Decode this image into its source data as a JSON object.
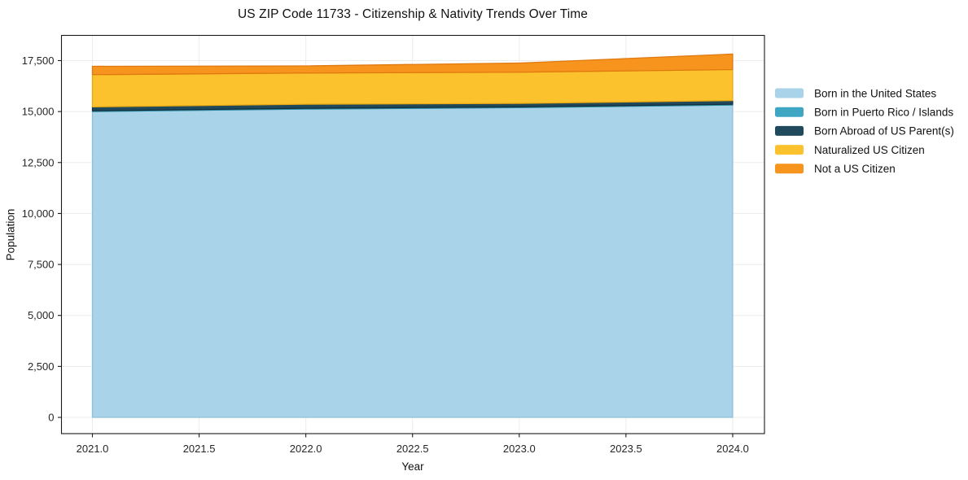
{
  "chart_data": {
    "type": "area",
    "stacked": true,
    "title": "US ZIP Code 11733 - Citizenship & Nativity Trends Over Time",
    "xlabel": "Year",
    "ylabel": "Population",
    "x": [
      2021,
      2022,
      2023,
      2024
    ],
    "series": [
      {
        "name": "Born in the United States",
        "key": "born-in-us",
        "color": "#a9d3e8",
        "edge": "#8fc0d8",
        "values": [
          15000,
          15120,
          15190,
          15320
        ]
      },
      {
        "name": "Born in Puerto Rico / Islands",
        "key": "born-in-pr",
        "color": "#3ea6c2",
        "edge": "#2d8ba6",
        "values": [
          40,
          40,
          40,
          40
        ]
      },
      {
        "name": "Born Abroad of US Parent(s)",
        "key": "born-abroad",
        "color": "#204a5c",
        "edge": "#14303d",
        "values": [
          190,
          200,
          170,
          180
        ]
      },
      {
        "name": "Naturalized US Citizen",
        "key": "naturalized",
        "color": "#fcc22d",
        "edge": "#e7a813",
        "values": [
          1580,
          1530,
          1530,
          1520
        ]
      },
      {
        "name": "Not a US Citizen",
        "key": "not-citizen",
        "color": "#f7941e",
        "edge": "#e0790f",
        "values": [
          410,
          350,
          450,
          760
        ]
      }
    ],
    "x_ticks": {
      "values": [
        2021.0,
        2021.5,
        2022.0,
        2022.5,
        2023.0,
        2023.5,
        2024.0
      ],
      "labels": [
        "2021.0",
        "2021.5",
        "2022.0",
        "2022.5",
        "2023.0",
        "2023.5",
        "2024.0"
      ]
    },
    "y_ticks": {
      "values": [
        0,
        2500,
        5000,
        7500,
        10000,
        12500,
        15000,
        17500
      ],
      "labels": [
        "0",
        "2,500",
        "5,000",
        "7,500",
        "10,000",
        "12,500",
        "15,000",
        "17,500"
      ]
    },
    "xlim": [
      2020.855,
      2024.149
    ],
    "ylim": [
      -797,
      18736
    ],
    "grid": true,
    "legend_position": "right"
  }
}
